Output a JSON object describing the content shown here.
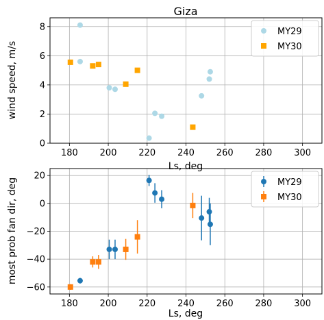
{
  "chart_data": [
    {
      "type": "scatter",
      "title": "Giza",
      "xlabel": "Ls, deg",
      "ylabel": "wind speed, m/s",
      "xlim": [
        170,
        310
      ],
      "ylim": [
        0,
        8.6
      ],
      "xticks": [
        180,
        200,
        220,
        240,
        260,
        280,
        300
      ],
      "yticks": [
        0,
        2,
        4,
        6,
        8
      ],
      "grid": true,
      "legend_position": "top-right",
      "series": [
        {
          "name": "MY29",
          "marker": "circle",
          "color": "#add8e6",
          "x": [
            185.5,
            185.5,
            200.5,
            203.5,
            221,
            224,
            227.5,
            248,
            252,
            252.5
          ],
          "y": [
            8.1,
            5.6,
            3.8,
            3.7,
            0.35,
            2.05,
            1.85,
            3.25,
            4.4,
            4.9
          ]
        },
        {
          "name": "MY30",
          "marker": "square",
          "color": "#ffa500",
          "x": [
            180.5,
            192,
            195,
            209,
            215,
            243.5
          ],
          "y": [
            5.55,
            5.3,
            5.4,
            4.05,
            5.0,
            1.1
          ]
        }
      ]
    },
    {
      "type": "scatter",
      "title": "",
      "xlabel": "Ls, deg",
      "ylabel": "most prob fan dir, deg",
      "xlim": [
        170,
        310
      ],
      "ylim": [
        -65,
        25
      ],
      "xticks": [
        180,
        200,
        220,
        240,
        260,
        280,
        300
      ],
      "yticks": [
        -60,
        -40,
        -20,
        0,
        20
      ],
      "grid": true,
      "legend_position": "top-right",
      "series": [
        {
          "name": "MY29",
          "marker": "circle",
          "color": "#1f77b4",
          "x": [
            185.5,
            200.5,
            203.5,
            221,
            224,
            227.5,
            248,
            252,
            252.5
          ],
          "y": [
            -55.5,
            -33,
            -33,
            16.5,
            7.5,
            3,
            -10.5,
            -6,
            -15
          ],
          "yerr": [
            2,
            7,
            7,
            4,
            7,
            6.5,
            16,
            10,
            15
          ]
        },
        {
          "name": "MY30",
          "marker": "square",
          "color": "#ff7f0e",
          "x": [
            180.5,
            192,
            195,
            209,
            215,
            243.5
          ],
          "y": [
            -60,
            -42,
            -42,
            -33,
            -24,
            -1.5
          ],
          "yerr": [
            2,
            4,
            5,
            7.5,
            12,
            9
          ]
        }
      ]
    }
  ]
}
